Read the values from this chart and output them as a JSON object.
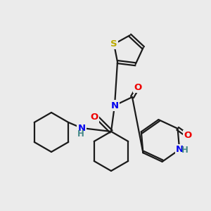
{
  "bg_color": "#ebebeb",
  "bond_color": "#1a1a1a",
  "bond_width": 1.6,
  "atom_colors": {
    "N": "#0000ee",
    "O": "#ee0000",
    "S": "#bbaa00",
    "H": "#448888",
    "C": "#1a1a1a"
  },
  "font_size": 9.5,
  "font_size_h": 8.5
}
